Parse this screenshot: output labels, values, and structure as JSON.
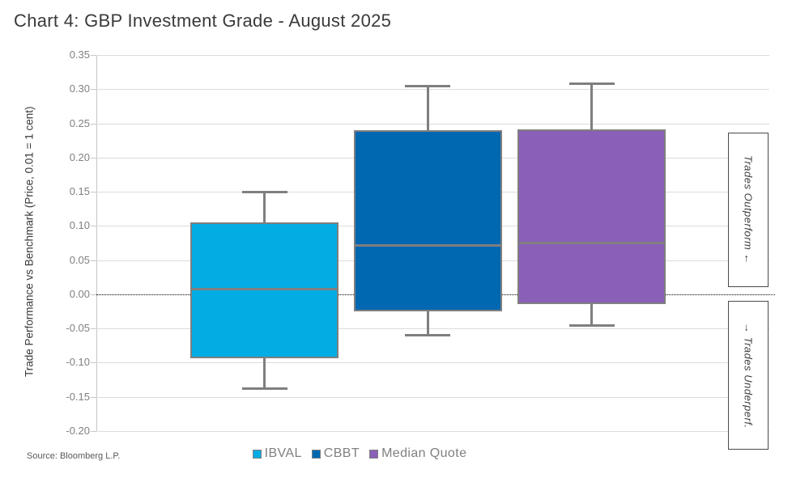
{
  "title": "Chart 4: GBP Investment Grade - August 2025",
  "source": "Source: Bloomberg L.P.",
  "side_labels": {
    "outperform": "Trades Outperform ←",
    "underperform": "→ Trades Underperf."
  },
  "legend": [
    {
      "label": "IBVAL",
      "color": "#04ACE4"
    },
    {
      "label": "CBBT",
      "color": "#0067B1"
    },
    {
      "label": "Median Quote",
      "color": "#8A5FB8"
    }
  ],
  "colors": {
    "ibval": "#04ACE4",
    "cbbt": "#0067B1",
    "median_quote": "#8A5FB8",
    "box_border": "#7f7f7f",
    "gridline": "#dcdcdc",
    "zero_line": "#1a1a1a"
  },
  "chart_data": {
    "type": "boxplot",
    "title": "Chart 4: GBP Investment Grade - August 2025",
    "xlabel": "",
    "ylabel": "Trade Performance vs Benchmark (Price, 0.01 = 1 cent)",
    "ylim": [
      -0.2,
      0.35
    ],
    "ytick_step": 0.05,
    "yticks": [
      "0.35",
      "0.30",
      "0.25",
      "0.20",
      "0.15",
      "0.10",
      "0.05",
      "0.00",
      "-0.05",
      "-0.10",
      "-0.15",
      "-0.20"
    ],
    "zero_reference_line": 0.0,
    "grid": true,
    "legend_position": "bottom",
    "series": [
      {
        "name": "IBVAL",
        "color": "#04ACE4",
        "whisker_high": 0.149,
        "q3": 0.105,
        "median": 0.007,
        "q1": -0.094,
        "whisker_low": -0.138
      },
      {
        "name": "CBBT",
        "color": "#0067B1",
        "whisker_high": 0.304,
        "q3": 0.24,
        "median": 0.072,
        "q1": -0.025,
        "whisker_low": -0.06
      },
      {
        "name": "Median Quote",
        "color": "#8A5FB8",
        "whisker_high": 0.308,
        "q3": 0.241,
        "median": 0.075,
        "q1": -0.014,
        "whisker_low": -0.046
      }
    ],
    "annotations": [
      "Trades Outperform ←",
      "→ Trades Underperf."
    ],
    "source": "Source: Bloomberg L.P."
  }
}
